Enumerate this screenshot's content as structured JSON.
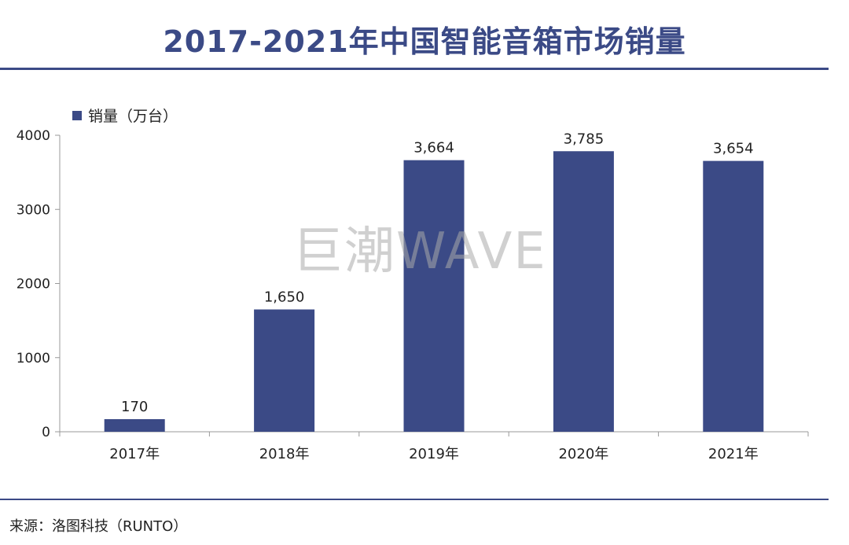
{
  "title": "2017-2021年中国智能音箱市场销量",
  "source": "来源：洛图科技（RUNTO）",
  "watermark": "巨潮WAVE",
  "colors": {
    "bar": "#3b4a86",
    "title": "#3b4a86",
    "rule": "#3b4a86"
  },
  "chart_data": {
    "type": "bar",
    "title": "2017-2021年中国智能音箱市场销量",
    "categories": [
      "2017年",
      "2018年",
      "2019年",
      "2020年",
      "2021年"
    ],
    "series": [
      {
        "name": "销量（万台）",
        "values": [
          170,
          1650,
          3664,
          3785,
          3654
        ],
        "labels": [
          "170",
          "1,650",
          "3,664",
          "3,785",
          "3,654"
        ]
      }
    ],
    "y_ticks": [
      0,
      1000,
      2000,
      3000,
      4000
    ],
    "ylim": [
      0,
      4000
    ],
    "xlabel": "",
    "ylabel": "",
    "grid": false,
    "legend_position": "top-left"
  }
}
